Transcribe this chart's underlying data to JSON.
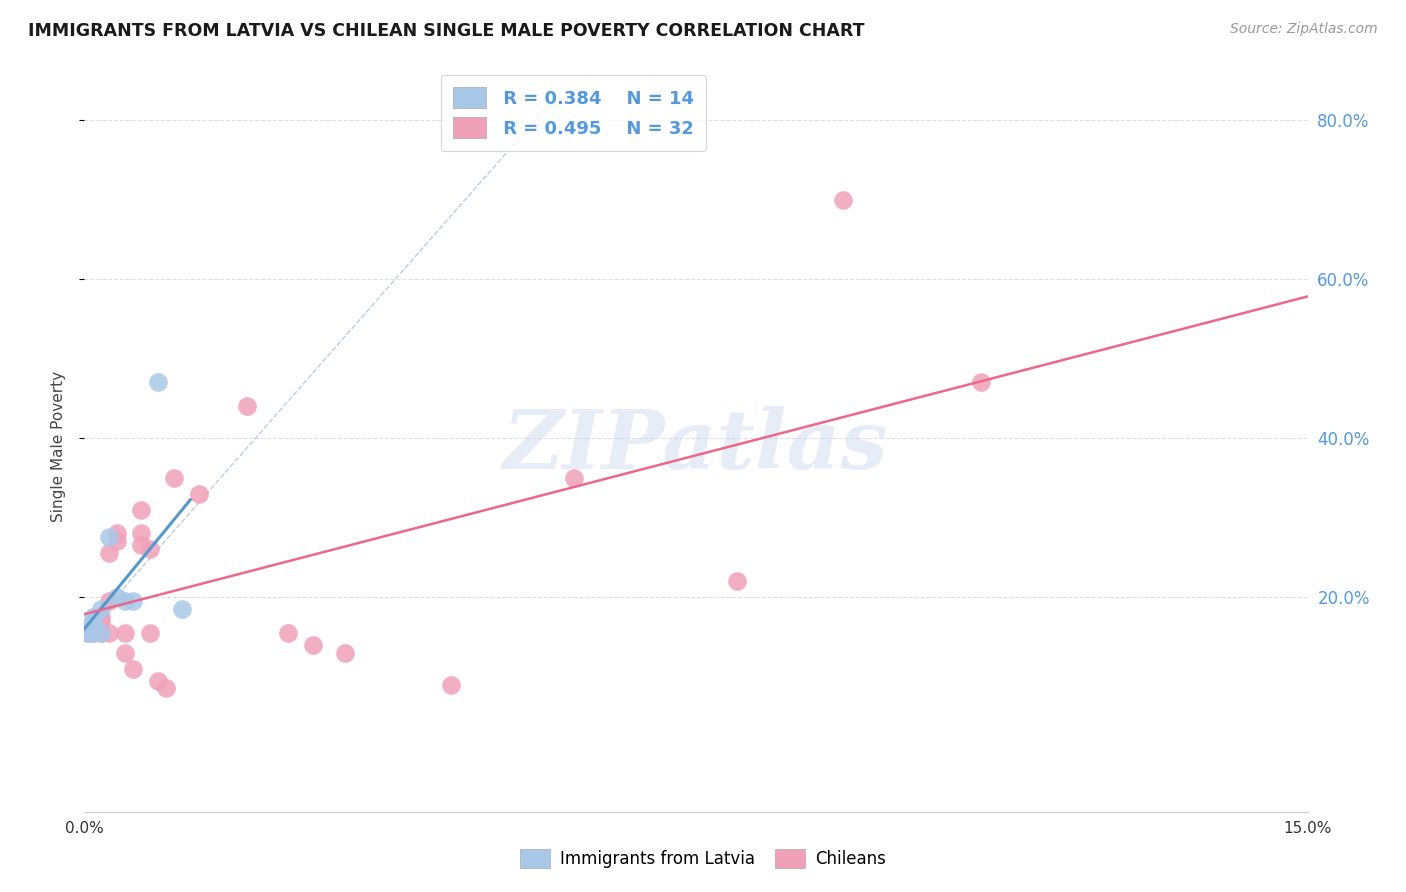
{
  "title": "IMMIGRANTS FROM LATVIA VS CHILEAN SINGLE MALE POVERTY CORRELATION CHART",
  "source": "Source: ZipAtlas.com",
  "ylabel": "Single Male Poverty",
  "legend_label1": "Immigrants from Latvia",
  "legend_label2": "Chileans",
  "r1": "R = 0.384",
  "n1": "N = 14",
  "r2": "R = 0.495",
  "n2": "N = 32",
  "blue_color": "#a8c8e8",
  "pink_color": "#f0a0b8",
  "blue_line_color": "#5599cc",
  "pink_line_color": "#ee6688",
  "dashed_line_color": "#bbccdd",
  "xlim": [
    0.0,
    0.15
  ],
  "ylim": [
    -0.07,
    0.85
  ],
  "ytick_vals": [
    0.2,
    0.4,
    0.6,
    0.8
  ],
  "ytick_labels": [
    "20.0%",
    "40.0%",
    "60.0%",
    "80.0%"
  ],
  "latvia_x": [
    0.0005,
    0.0005,
    0.001,
    0.001,
    0.001,
    0.001,
    0.002,
    0.002,
    0.003,
    0.004,
    0.005,
    0.006,
    0.009,
    0.012
  ],
  "latvia_y": [
    0.155,
    0.16,
    0.155,
    0.165,
    0.17,
    0.175,
    0.155,
    0.185,
    0.275,
    0.2,
    0.195,
    0.195,
    0.47,
    0.185
  ],
  "chilean_x": [
    0.0005,
    0.001,
    0.001,
    0.002,
    0.002,
    0.002,
    0.003,
    0.003,
    0.003,
    0.004,
    0.004,
    0.005,
    0.005,
    0.006,
    0.007,
    0.007,
    0.007,
    0.008,
    0.008,
    0.009,
    0.01,
    0.011,
    0.014,
    0.02,
    0.025,
    0.028,
    0.032,
    0.045,
    0.06,
    0.08,
    0.093,
    0.11
  ],
  "chilean_y": [
    0.155,
    0.155,
    0.165,
    0.155,
    0.17,
    0.175,
    0.155,
    0.195,
    0.255,
    0.27,
    0.28,
    0.155,
    0.13,
    0.11,
    0.265,
    0.28,
    0.31,
    0.26,
    0.155,
    0.095,
    0.085,
    0.35,
    0.33,
    0.44,
    0.155,
    0.14,
    0.13,
    0.09,
    0.35,
    0.22,
    0.7,
    0.47
  ],
  "background_color": "#ffffff",
  "grid_color": "#ddddee",
  "tick_color": "#5599dd",
  "watermark": "ZIPatlas"
}
